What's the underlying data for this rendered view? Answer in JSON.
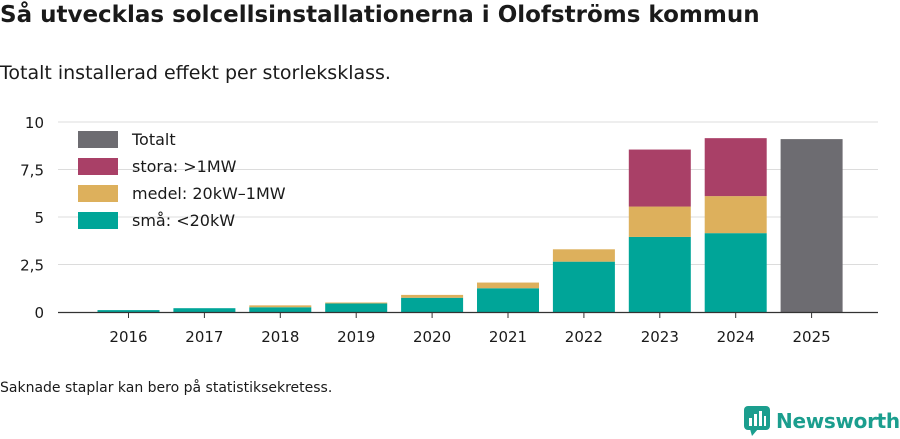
{
  "title": "Så utvecklas solcellsinstallationerna i Olofströms kommun",
  "subtitle": "Totalt installerad effekt per storleksklass.",
  "note": "Saknade staplar kan bero på statistiksekretess.",
  "brand": {
    "name": "Newsworthy",
    "color": "#1b9e8e"
  },
  "chart_data": {
    "type": "bar",
    "stacked": true,
    "categories": [
      "2016",
      "2017",
      "2018",
      "2019",
      "2020",
      "2021",
      "2022",
      "2023",
      "2024",
      "2025"
    ],
    "yticks": [
      0,
      2.5,
      5,
      7.5,
      10
    ],
    "ytick_labels": [
      "0",
      "2,5",
      "5",
      "7,5",
      "10"
    ],
    "ylim": [
      0,
      10
    ],
    "legend_position": "top-left",
    "series": [
      {
        "name": "små: <20kW",
        "color": "#00a598",
        "values": [
          0.1,
          0.2,
          0.25,
          0.45,
          0.75,
          1.25,
          2.65,
          3.95,
          4.15,
          null
        ]
      },
      {
        "name": "medel: 20kW–1MW",
        "color": "#ddb05c",
        "values": [
          0,
          0,
          0.1,
          0.05,
          0.15,
          0.3,
          0.65,
          1.6,
          1.95,
          null
        ]
      },
      {
        "name": "stora: >1MW",
        "color": "#a94067",
        "values": [
          0,
          0,
          0,
          0,
          0,
          0,
          0,
          3.0,
          3.05,
          null
        ]
      },
      {
        "name": "Totalt",
        "color": "#6d6c71",
        "values": [
          null,
          null,
          null,
          null,
          null,
          null,
          null,
          null,
          null,
          9.1
        ]
      }
    ],
    "legend_order": [
      "Totalt",
      "stora: >1MW",
      "medel: 20kW–1MW",
      "små: <20kW"
    ]
  }
}
